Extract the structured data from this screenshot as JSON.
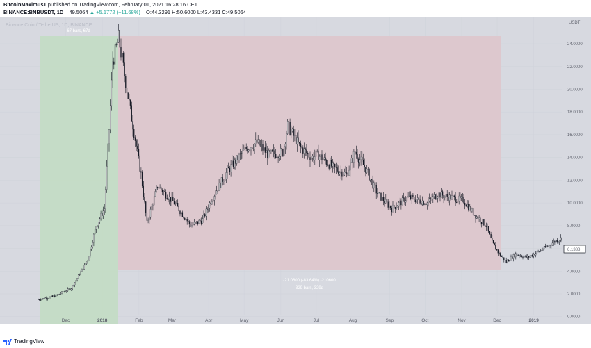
{
  "header": {
    "author": "BitcoinMaximus1",
    "published": "published on TradingView.com, February 01, 2021 16:28:16 CET",
    "symbol": "BINANCE:BNBUSDT,",
    "interval": "1D",
    "last": "49.5064",
    "change": "▲ +5.1772 (+11.68%)",
    "open": "O:44.3291",
    "high": "H:50.6000",
    "low": "L:43.4331",
    "close": "C:49.5064"
  },
  "watermark": "Binance Coin / TetherUS, 1D, BINANCE",
  "price_axis": {
    "unit": "USDT",
    "ticks": [
      "24.0000",
      "22.0000",
      "20.0000",
      "18.0000",
      "16.0000",
      "14.0000",
      "12.0000",
      "10.0000",
      "8.0000",
      "6.0000",
      "4.0000",
      "2.0000",
      "0.0000"
    ],
    "current_price": "6.1388"
  },
  "time_axis": {
    "labels": [
      "Dec",
      "2018",
      "Feb",
      "Mar",
      "Apr",
      "May",
      "Jun",
      "Jul",
      "Aug",
      "Sep",
      "Oct",
      "Nov",
      "Dec",
      "2019"
    ]
  },
  "annotations": {
    "rise_range": {
      "text": "67 bars, 67d",
      "color": "#4caf50"
    },
    "fall_range": {
      "text1": "-21.0600 (-83.64%) -210600",
      "text2": "329 bars, 329d",
      "color": "#e57373"
    }
  },
  "chart_data": {
    "type": "line",
    "title": "",
    "xlabel": "",
    "ylabel": "",
    "ylim": [
      0,
      26
    ],
    "x_start": "2017-11-06",
    "x_end": "2019-01-31",
    "series": [
      {
        "x": [
          "2017-11-06",
          "2017-11-20",
          "2017-12-04",
          "2017-12-18",
          "2017-12-25",
          "2018-01-01",
          "2018-01-05",
          "2018-01-08",
          "2018-01-10",
          "2018-01-13",
          "2018-01-20",
          "2018-02-01",
          "2018-02-06",
          "2018-02-15",
          "2018-03-01",
          "2018-03-15",
          "2018-03-25",
          "2018-04-01",
          "2018-04-15",
          "2018-05-01",
          "2018-05-10",
          "2018-05-20",
          "2018-06-01",
          "2018-06-05",
          "2018-06-15",
          "2018-06-25",
          "2018-07-01",
          "2018-07-15",
          "2018-07-25",
          "2018-08-01",
          "2018-08-10",
          "2018-08-20",
          "2018-09-01",
          "2018-09-15",
          "2018-10-01",
          "2018-10-10",
          "2018-10-20",
          "2018-11-01",
          "2018-11-10",
          "2018-11-20",
          "2018-11-25",
          "2018-12-01",
          "2018-12-07",
          "2018-12-15",
          "2018-12-25",
          "2019-01-05",
          "2019-01-15",
          "2019-01-25",
          "2019-01-31"
        ],
        "values": [
          1.5,
          1.8,
          2.5,
          5.0,
          8.0,
          9.5,
          16.5,
          22.5,
          23.2,
          24.5,
          20.0,
          12.5,
          8.2,
          11.5,
          10.0,
          8.0,
          8.5,
          10.2,
          12.8,
          14.8,
          15.3,
          14.2,
          14.5,
          16.8,
          15.0,
          14.0,
          14.2,
          13.0,
          12.5,
          14.5,
          13.0,
          10.8,
          9.5,
          10.5,
          10.0,
          10.8,
          10.5,
          10.2,
          9.0,
          8.0,
          6.5,
          5.5,
          4.8,
          5.5,
          5.2,
          5.8,
          6.5,
          7.0,
          6.1
        ]
      }
    ]
  }
}
